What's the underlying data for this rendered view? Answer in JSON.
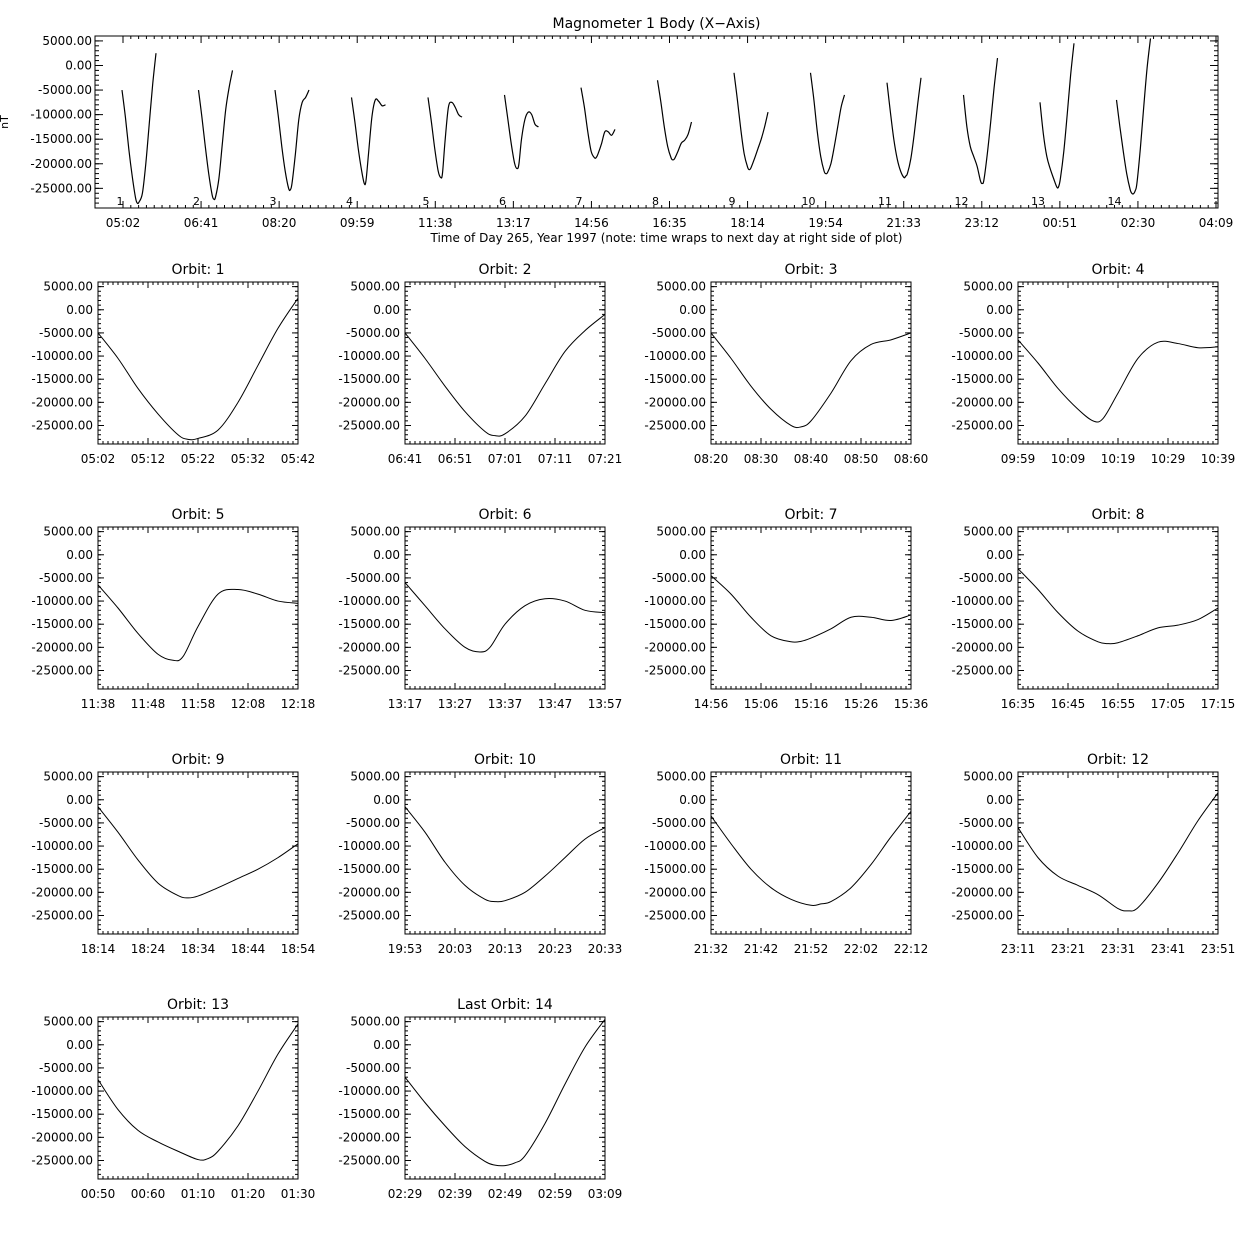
{
  "chart_data": {
    "overview": {
      "type": "line",
      "title": "Magnometer 1 Body (X−Axis)",
      "xlabel": "Time of Day 265, Year 1997 (note: time wraps to next day at right side of plot)",
      "ylabel": "nT",
      "xticks": [
        "05:02",
        "06:41",
        "08:20",
        "09:59",
        "11:38",
        "13:17",
        "14:56",
        "16:35",
        "18:14",
        "19:54",
        "21:33",
        "23:12",
        "00:51",
        "02:30",
        "04:09"
      ],
      "yticks": [
        "5000.00",
        "0.00",
        "-5000.00",
        "-10000.00",
        "-15000.00",
        "-20000.00",
        "-25000.00"
      ],
      "ylim": [
        -29000,
        6000
      ],
      "orbit_labels": [
        "1",
        "2",
        "3",
        "4",
        "5",
        "6",
        "7",
        "8",
        "9",
        "10",
        "11",
        "12",
        "13",
        "14"
      ]
    },
    "orbits": [
      {
        "title": "Orbit: 1",
        "xticks": [
          "05:02",
          "05:12",
          "05:22",
          "05:32",
          "05:42"
        ],
        "x": [
          0,
          4,
          8,
          12,
          16,
          18,
          20,
          24,
          28,
          32,
          36,
          40
        ],
        "y": [
          -5000,
          -10500,
          -17000,
          -22500,
          -27000,
          -28000,
          -27800,
          -26000,
          -20000,
          -12000,
          -4000,
          2500
        ]
      },
      {
        "title": "Orbit: 2",
        "xticks": [
          "06:41",
          "06:51",
          "07:01",
          "07:11",
          "07:21"
        ],
        "x": [
          0,
          4,
          8,
          12,
          16,
          18,
          20,
          24,
          28,
          32,
          36,
          40
        ],
        "y": [
          -5000,
          -10500,
          -16500,
          -22000,
          -26300,
          -27200,
          -26800,
          -23000,
          -16000,
          -9000,
          -4500,
          -1000
        ]
      },
      {
        "title": "Orbit: 3",
        "xticks": [
          "08:20",
          "08:30",
          "08:40",
          "08:50",
          "08:60"
        ],
        "x": [
          0,
          4,
          8,
          12,
          16,
          18,
          20,
          24,
          28,
          32,
          36,
          40
        ],
        "y": [
          -5000,
          -10500,
          -16500,
          -21500,
          -25000,
          -25300,
          -24000,
          -18000,
          -11000,
          -7500,
          -6500,
          -5000
        ]
      },
      {
        "title": "Orbit: 4",
        "xticks": [
          "09:59",
          "10:09",
          "10:19",
          "10:29",
          "10:39"
        ],
        "x": [
          0,
          4,
          8,
          12,
          15,
          17,
          20,
          24,
          28,
          32,
          36,
          40
        ],
        "y": [
          -6500,
          -11500,
          -17000,
          -21500,
          -24000,
          -23500,
          -18000,
          -10500,
          -7000,
          -7300,
          -8200,
          -8000
        ]
      },
      {
        "title": "Orbit: 5",
        "xticks": [
          "11:38",
          "11:48",
          "11:58",
          "12:08",
          "12:18"
        ],
        "x": [
          0,
          4,
          8,
          12,
          15,
          17,
          20,
          24,
          28,
          32,
          36,
          40
        ],
        "y": [
          -6500,
          -11500,
          -17000,
          -21500,
          -22800,
          -22000,
          -15500,
          -8500,
          -7500,
          -8500,
          -10000,
          -10500
        ]
      },
      {
        "title": "Orbit: 6",
        "xticks": [
          "13:17",
          "13:27",
          "13:37",
          "13:47",
          "13:57"
        ],
        "x": [
          0,
          4,
          8,
          12,
          15,
          17,
          20,
          24,
          28,
          32,
          36,
          40
        ],
        "y": [
          -6000,
          -11000,
          -16000,
          -20000,
          -21000,
          -20000,
          -15000,
          -11000,
          -9500,
          -10000,
          -12000,
          -12500
        ]
      },
      {
        "title": "Orbit: 7",
        "xticks": [
          "14:56",
          "15:06",
          "15:16",
          "15:26",
          "15:36"
        ],
        "x": [
          0,
          4,
          8,
          12,
          16,
          18,
          20,
          24,
          28,
          32,
          36,
          40
        ],
        "y": [
          -4500,
          -8500,
          -13500,
          -17500,
          -18800,
          -18700,
          -18000,
          -16000,
          -13500,
          -13500,
          -14200,
          -13000
        ]
      },
      {
        "title": "Orbit: 8",
        "xticks": [
          "16:35",
          "16:45",
          "16:55",
          "17:05",
          "17:15"
        ],
        "x": [
          0,
          4,
          8,
          12,
          16,
          18,
          20,
          24,
          28,
          32,
          36,
          40
        ],
        "y": [
          -3000,
          -7500,
          -12500,
          -16500,
          -18800,
          -19200,
          -19000,
          -17500,
          -15800,
          -15200,
          -14000,
          -11500
        ]
      },
      {
        "title": "Orbit: 9",
        "xticks": [
          "18:14",
          "18:24",
          "18:34",
          "18:44",
          "18:54"
        ],
        "x": [
          0,
          4,
          8,
          12,
          16,
          18,
          20,
          24,
          28,
          32,
          36,
          40
        ],
        "y": [
          -1500,
          -7000,
          -13000,
          -18000,
          -20700,
          -21200,
          -20800,
          -19000,
          -17000,
          -15000,
          -12500,
          -9500
        ]
      },
      {
        "title": "Orbit: 10",
        "xticks": [
          "19:53",
          "20:03",
          "20:13",
          "20:23",
          "20:33"
        ],
        "x": [
          0,
          4,
          8,
          12,
          16,
          18,
          20,
          24,
          28,
          32,
          36,
          40
        ],
        "y": [
          -1500,
          -7000,
          -13500,
          -18500,
          -21500,
          -22000,
          -21800,
          -20000,
          -16500,
          -12500,
          -8500,
          -6000
        ]
      },
      {
        "title": "Orbit: 11",
        "xticks": [
          "21:32",
          "21:42",
          "21:52",
          "22:02",
          "22:12"
        ],
        "x": [
          0,
          4,
          8,
          12,
          16,
          20,
          22,
          24,
          28,
          32,
          36,
          40
        ],
        "y": [
          -3500,
          -9500,
          -15000,
          -19000,
          -21500,
          -22800,
          -22500,
          -22000,
          -19000,
          -14000,
          -8000,
          -2500
        ]
      },
      {
        "title": "Orbit: 12",
        "xticks": [
          "23:11",
          "23:21",
          "23:31",
          "23:41",
          "23:51"
        ],
        "x": [
          0,
          4,
          8,
          12,
          16,
          20,
          22,
          24,
          28,
          32,
          36,
          40
        ],
        "y": [
          -6000,
          -12500,
          -16500,
          -18500,
          -20500,
          -23500,
          -24000,
          -23300,
          -18000,
          -11500,
          -4500,
          1500
        ]
      },
      {
        "title": "Orbit: 13",
        "xticks": [
          "00:50",
          "00:60",
          "01:10",
          "01:20",
          "01:30"
        ],
        "x": [
          0,
          4,
          8,
          12,
          16,
          20,
          22,
          24,
          28,
          32,
          36,
          40
        ],
        "y": [
          -7500,
          -14000,
          -18500,
          -21000,
          -23000,
          -24800,
          -24600,
          -23000,
          -17500,
          -10000,
          -2000,
          4500
        ]
      },
      {
        "title": "Last Orbit: 14",
        "xticks": [
          "02:29",
          "02:39",
          "02:49",
          "02:59",
          "03:09"
        ],
        "x": [
          0,
          4,
          8,
          12,
          16,
          18,
          20,
          22,
          24,
          28,
          32,
          36,
          40
        ],
        "y": [
          -7000,
          -12500,
          -17500,
          -22000,
          -25200,
          -26000,
          -26100,
          -25500,
          -24000,
          -17000,
          -8500,
          -500,
          5500
        ]
      }
    ],
    "yticks": [
      "5000.00",
      "0.00",
      "-5000.00",
      "-10000.00",
      "-15000.00",
      "-20000.00",
      "-25000.00"
    ],
    "ylim": [
      -29000,
      6000
    ],
    "xlim": [
      0,
      40
    ]
  }
}
